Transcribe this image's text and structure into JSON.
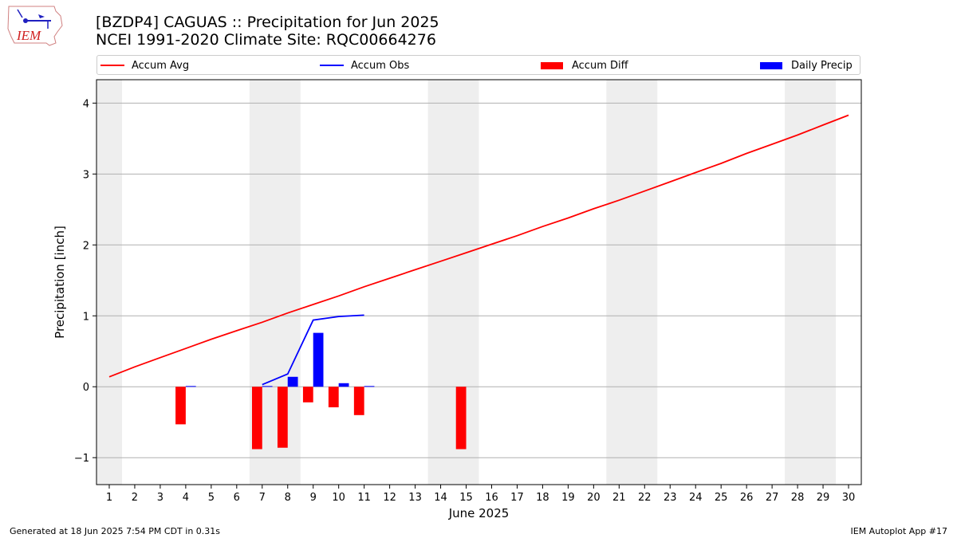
{
  "header": {
    "logo_text": "IEM",
    "title_line1": "[BZDP4] CAGUAS :: Precipitation for Jun 2025",
    "title_line2": "NCEI 1991-2020 Climate Site: RQC00664276"
  },
  "legend": {
    "items": [
      {
        "label": "Accum Avg",
        "color": "#ff0000",
        "kind": "line"
      },
      {
        "label": "Accum Obs",
        "color": "#0000ff",
        "kind": "line"
      },
      {
        "label": "Accum Diff",
        "color": "#ff0000",
        "kind": "bar"
      },
      {
        "label": "Daily Precip",
        "color": "#0000ff",
        "kind": "bar"
      }
    ]
  },
  "footer": {
    "left": "Generated at 18 Jun 2025 7:54 PM CDT in 0.31s",
    "right": "IEM Autoplot App #17"
  },
  "chart_data": {
    "type": "bar",
    "xlabel": "June 2025",
    "ylabel": "Precipitation [inch]",
    "xlim": [
      0.5,
      30.5
    ],
    "ylim": [
      -1.38,
      4.33
    ],
    "x_ticks": [
      1,
      2,
      3,
      4,
      5,
      6,
      7,
      8,
      9,
      10,
      11,
      12,
      13,
      14,
      15,
      16,
      17,
      18,
      19,
      20,
      21,
      22,
      23,
      24,
      25,
      26,
      27,
      28,
      29,
      30
    ],
    "y_ticks": [
      -1,
      0,
      1,
      2,
      3,
      4
    ],
    "y_tick_labels": [
      "−1",
      "0",
      "1",
      "2",
      "3",
      "4"
    ],
    "grid": "horizontal",
    "weekend_shading": [
      [
        0.5,
        1.5
      ],
      [
        6.5,
        8.5
      ],
      [
        13.5,
        15.5
      ],
      [
        20.5,
        22.5
      ],
      [
        27.5,
        29.5
      ]
    ],
    "weekend_color": "#eeeeee",
    "series": [
      {
        "name": "Accum Avg",
        "kind": "line",
        "color": "#ff0000",
        "x": [
          1,
          2,
          3,
          4,
          5,
          6,
          7,
          8,
          9,
          10,
          11,
          12,
          13,
          14,
          15,
          16,
          17,
          18,
          19,
          20,
          21,
          22,
          23,
          24,
          25,
          26,
          27,
          28,
          29,
          30
        ],
        "values": [
          0.14,
          0.28,
          0.41,
          0.54,
          0.67,
          0.79,
          0.91,
          1.04,
          1.16,
          1.28,
          1.41,
          1.53,
          1.65,
          1.77,
          1.89,
          2.01,
          2.13,
          2.26,
          2.38,
          2.51,
          2.63,
          2.76,
          2.89,
          3.02,
          3.15,
          3.29,
          3.42,
          3.55,
          3.69,
          3.83
        ]
      },
      {
        "name": "Accum Obs",
        "kind": "line",
        "color": "#0000ff",
        "x": [
          7,
          8,
          9,
          10,
          11
        ],
        "values": [
          0.03,
          0.18,
          0.94,
          0.99,
          1.01
        ]
      },
      {
        "name": "Accum Diff",
        "kind": "bar",
        "color": "#ff0000",
        "x": [
          4,
          7,
          8,
          9,
          10,
          11,
          15
        ],
        "values": [
          -0.53,
          -0.88,
          -0.86,
          -0.22,
          -0.29,
          -0.4,
          -0.88
        ]
      },
      {
        "name": "Daily Precip",
        "kind": "bar",
        "color": "#0000ff",
        "x": [
          4,
          7,
          8,
          9,
          10,
          11
        ],
        "values": [
          0.01,
          0.01,
          0.14,
          0.76,
          0.05,
          0.01
        ]
      }
    ]
  }
}
